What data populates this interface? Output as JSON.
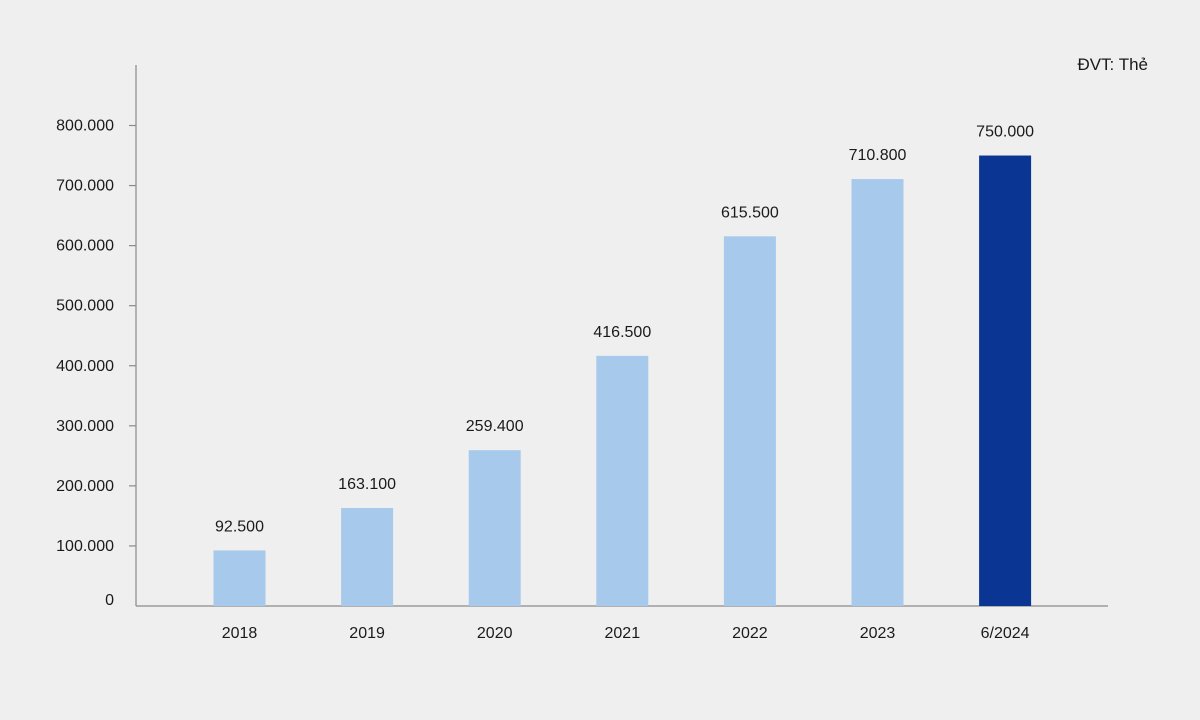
{
  "chart_data": {
    "type": "bar",
    "unit_label": "ĐVT: Thẻ",
    "categories": [
      "2018",
      "2019",
      "2020",
      "2021",
      "2022",
      "2023",
      "6/2024"
    ],
    "values": [
      92500,
      163100,
      259400,
      416500,
      615500,
      710800,
      750000
    ],
    "value_labels": [
      "92.500",
      "163.100",
      "259.400",
      "416.500",
      "615.500",
      "710.800",
      "750.000"
    ],
    "ylim": [
      0,
      800000
    ],
    "yticks": [
      0,
      100000,
      200000,
      300000,
      400000,
      500000,
      600000,
      700000,
      800000
    ],
    "ytick_labels": [
      "0",
      "100.000",
      "200.000",
      "300.000",
      "400.000",
      "500.000",
      "600.000",
      "700.000",
      "800.000"
    ],
    "grid": false,
    "legend": "none",
    "colors": {
      "bar": "#a7c9ec",
      "highlight_bar": "#0b3593",
      "axis": "#8a8a8a",
      "text": "#1a1a1a",
      "background": "#efefef"
    },
    "highlight_index": 6
  }
}
